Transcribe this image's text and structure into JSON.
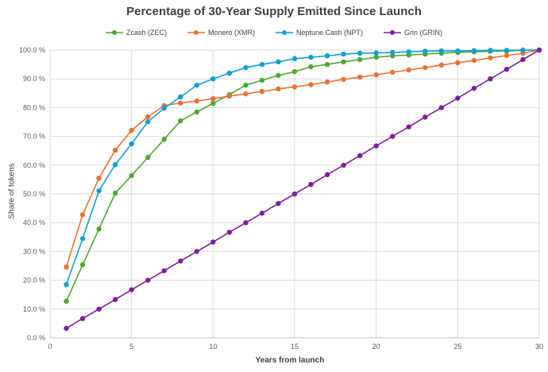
{
  "chart_data": {
    "type": "line",
    "title": "Percentage of 30-Year Supply Emitted Since Launch",
    "xlabel": "Years from launch",
    "ylabel": "Share of tokens",
    "xlim": [
      0,
      30
    ],
    "ylim": [
      0,
      100
    ],
    "x_ticks": [
      "0",
      "5",
      "10",
      "15",
      "20",
      "25",
      "30"
    ],
    "y_ticks": [
      "0.0 %",
      "10.0 %",
      "20.0 %",
      "30.0 %",
      "40.0 %",
      "50.0 %",
      "60.0 %",
      "70.0 %",
      "80.0 %",
      "90.0 %",
      "100.0 %"
    ],
    "grid": true,
    "legend_position": "top",
    "x": [
      1,
      2,
      3,
      4,
      5,
      6,
      7,
      8,
      9,
      10,
      11,
      12,
      13,
      14,
      15,
      16,
      17,
      18,
      19,
      20,
      21,
      22,
      23,
      24,
      25,
      26,
      27,
      28,
      29,
      30
    ],
    "series": [
      {
        "name": "Zcash (ZEC)",
        "color": "#4EA72E",
        "values": [
          12.7,
          25.4,
          37.8,
          50.3,
          56.4,
          62.7,
          69.0,
          75.4,
          78.5,
          81.5,
          84.5,
          87.8,
          89.5,
          91.2,
          92.5,
          94.2,
          95.0,
          95.9,
          96.7,
          97.5,
          98.0,
          98.3,
          98.6,
          98.9,
          99.2,
          99.4,
          99.6,
          99.7,
          99.9,
          100
        ]
      },
      {
        "name": "Monero (XMR)",
        "color": "#E97132",
        "values": [
          24.6,
          42.8,
          55.5,
          65.2,
          72.1,
          76.8,
          80.7,
          81.6,
          82.3,
          83.1,
          84.0,
          84.8,
          85.6,
          86.5,
          87.2,
          88.0,
          88.9,
          89.8,
          90.6,
          91.4,
          92.3,
          93.1,
          93.9,
          94.8,
          95.6,
          96.4,
          97.3,
          98.1,
          98.9,
          100
        ]
      },
      {
        "name": "Neptune Cash (NPT)",
        "color": "#0F9ED5",
        "values": [
          18.5,
          34.5,
          51.1,
          60.2,
          67.4,
          75.1,
          79.8,
          83.7,
          87.8,
          90.0,
          92.0,
          93.9,
          95.0,
          95.9,
          97.0,
          97.5,
          98.0,
          98.6,
          98.9,
          99.0,
          99.2,
          99.4,
          99.6,
          99.7,
          99.7,
          99.8,
          99.9,
          99.9,
          100,
          100
        ]
      },
      {
        "name": "Grin (GRIN)",
        "color": "#7E1E9C",
        "values": [
          3.3,
          6.7,
          10.0,
          13.3,
          16.7,
          20.0,
          23.3,
          26.7,
          30.0,
          33.3,
          36.7,
          40.0,
          43.3,
          46.7,
          50.0,
          53.3,
          56.7,
          60.0,
          63.3,
          66.7,
          70.0,
          73.3,
          76.7,
          80.0,
          83.3,
          86.7,
          90.0,
          93.3,
          96.7,
          100
        ]
      }
    ]
  }
}
